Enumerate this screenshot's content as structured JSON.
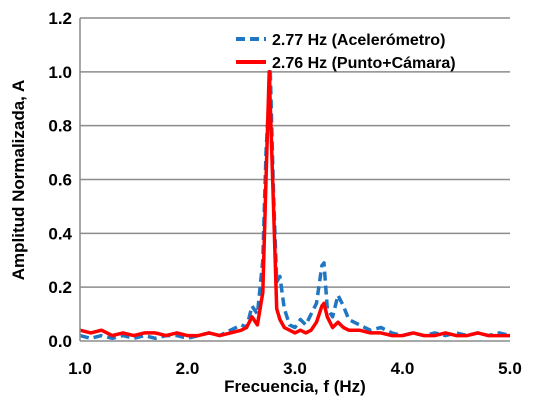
{
  "chart_data": {
    "type": "line",
    "title": "",
    "xlabel": "Frecuencia, f (Hz)",
    "ylabel": "Amplitud Normalizada, A",
    "xlim": [
      1.0,
      5.0
    ],
    "ylim": [
      0.0,
      1.2
    ],
    "xticks": [
      "1.0",
      "2.0",
      "3.0",
      "4.0",
      "5.0"
    ],
    "yticks": [
      "0.0",
      "0.2",
      "0.4",
      "0.6",
      "0.8",
      "1.0",
      "1.2"
    ],
    "grid": "horizontal",
    "legend_position": "top-right",
    "series": [
      {
        "name": "2.77 Hz (Acelerómetro)",
        "color": "#1f77c4",
        "style": "dashed",
        "x": [
          1.0,
          1.1,
          1.2,
          1.3,
          1.4,
          1.5,
          1.6,
          1.7,
          1.8,
          1.9,
          2.0,
          2.1,
          2.2,
          2.3,
          2.4,
          2.5,
          2.55,
          2.6,
          2.65,
          2.7,
          2.73,
          2.77,
          2.8,
          2.83,
          2.86,
          2.9,
          2.95,
          3.0,
          3.05,
          3.1,
          3.15,
          3.2,
          3.25,
          3.27,
          3.3,
          3.35,
          3.4,
          3.45,
          3.5,
          3.6,
          3.7,
          3.8,
          3.9,
          4.0,
          4.1,
          4.2,
          4.3,
          4.4,
          4.5,
          4.6,
          4.7,
          4.8,
          4.9,
          5.0
        ],
        "y": [
          0.02,
          0.01,
          0.02,
          0.01,
          0.02,
          0.01,
          0.02,
          0.01,
          0.02,
          0.02,
          0.01,
          0.02,
          0.03,
          0.02,
          0.04,
          0.06,
          0.05,
          0.13,
          0.1,
          0.3,
          0.7,
          1.0,
          0.55,
          0.22,
          0.24,
          0.12,
          0.06,
          0.05,
          0.08,
          0.06,
          0.1,
          0.14,
          0.28,
          0.29,
          0.12,
          0.09,
          0.17,
          0.13,
          0.08,
          0.06,
          0.04,
          0.05,
          0.03,
          0.02,
          0.03,
          0.02,
          0.03,
          0.02,
          0.03,
          0.02,
          0.03,
          0.02,
          0.03,
          0.02
        ]
      },
      {
        "name": "2.76 Hz (Punto+Cámara)",
        "color": "#ff0000",
        "style": "solid",
        "x": [
          1.0,
          1.1,
          1.2,
          1.3,
          1.4,
          1.5,
          1.6,
          1.7,
          1.8,
          1.9,
          2.0,
          2.1,
          2.2,
          2.3,
          2.4,
          2.5,
          2.55,
          2.6,
          2.65,
          2.7,
          2.73,
          2.76,
          2.8,
          2.83,
          2.86,
          2.9,
          2.95,
          3.0,
          3.05,
          3.1,
          3.15,
          3.2,
          3.25,
          3.27,
          3.3,
          3.35,
          3.4,
          3.45,
          3.5,
          3.6,
          3.7,
          3.8,
          3.9,
          4.0,
          4.1,
          4.2,
          4.3,
          4.4,
          4.5,
          4.6,
          4.7,
          4.8,
          4.9,
          5.0
        ],
        "y": [
          0.04,
          0.03,
          0.04,
          0.02,
          0.03,
          0.02,
          0.03,
          0.03,
          0.02,
          0.03,
          0.02,
          0.02,
          0.03,
          0.02,
          0.03,
          0.04,
          0.05,
          0.09,
          0.06,
          0.18,
          0.6,
          1.0,
          0.5,
          0.12,
          0.08,
          0.05,
          0.04,
          0.03,
          0.04,
          0.03,
          0.04,
          0.07,
          0.13,
          0.14,
          0.09,
          0.05,
          0.07,
          0.05,
          0.04,
          0.04,
          0.03,
          0.03,
          0.02,
          0.02,
          0.03,
          0.02,
          0.02,
          0.03,
          0.02,
          0.02,
          0.03,
          0.02,
          0.02,
          0.02
        ]
      }
    ]
  }
}
